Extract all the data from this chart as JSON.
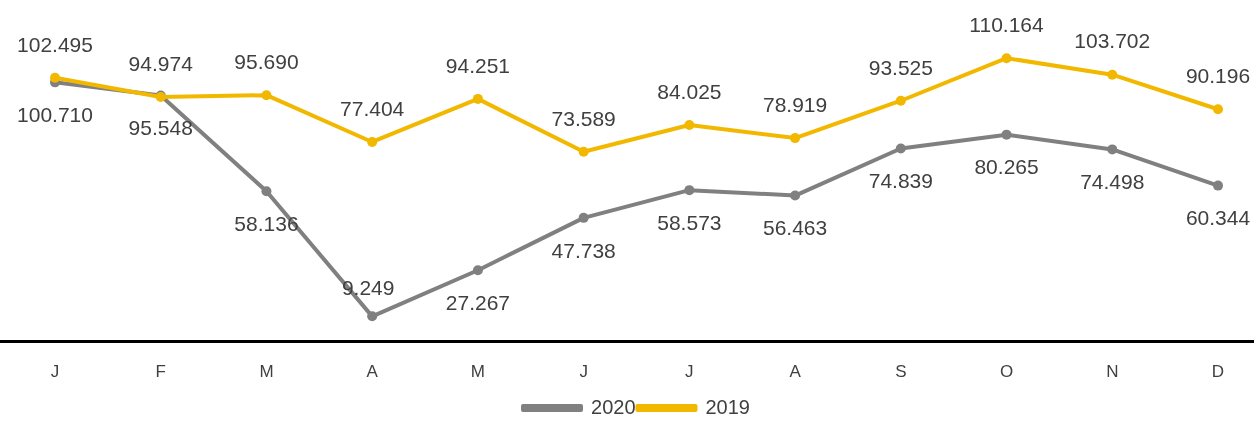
{
  "chart_data": {
    "type": "line",
    "categories": [
      "J",
      "F",
      "M",
      "A",
      "M",
      "J",
      "J",
      "A",
      "S",
      "O",
      "N",
      "D"
    ],
    "series": [
      {
        "name": "2020",
        "color": "#808080",
        "values": [
          100.71,
          95.548,
          58.136,
          9.249,
          27.267,
          47.738,
          58.573,
          56.463,
          74.839,
          80.265,
          74.498,
          60.344
        ],
        "value_labels": [
          "100.710",
          "95.548",
          "58.136",
          "9.249",
          "27.267",
          "47.738",
          "58.573",
          "56.463",
          "74.839",
          "80.265",
          "74.498",
          "60.344"
        ]
      },
      {
        "name": "2019",
        "color": "#f2b800",
        "values": [
          102.495,
          94.974,
          95.69,
          77.404,
          94.251,
          73.589,
          84.025,
          78.919,
          93.525,
          110.164,
          103.702,
          90.196
        ],
        "value_labels": [
          "102.495",
          "94.974",
          "95.690",
          "77.404",
          "94.251",
          "73.589",
          "84.025",
          "78.919",
          "93.525",
          "110.164",
          "103.702",
          "90.196"
        ]
      }
    ],
    "tick_labels": "x",
    "legend": "bottom",
    "marker": "circle",
    "line_style": "solid"
  }
}
